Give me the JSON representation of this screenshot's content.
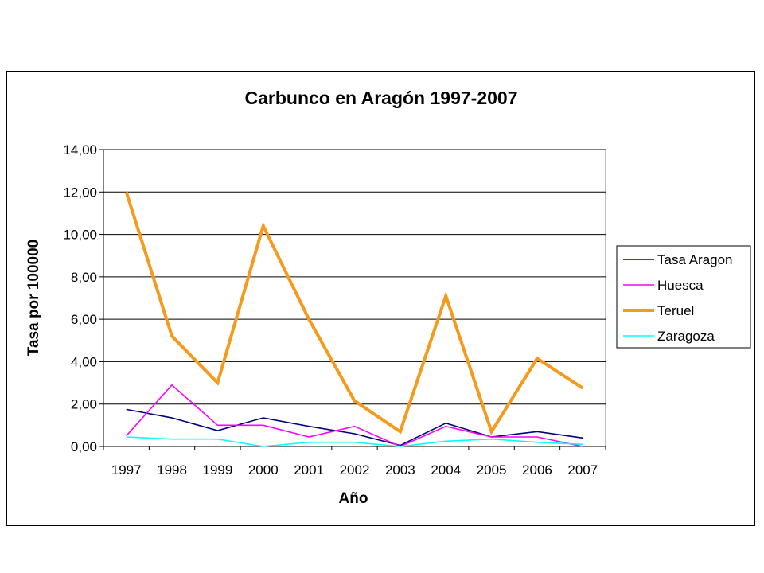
{
  "chart_data": {
    "type": "line",
    "title": "Carbunco en Aragón 1997-2007",
    "xlabel": "Año",
    "ylabel": "Tasa por 100000",
    "categories": [
      "1997",
      "1998",
      "1999",
      "2000",
      "2001",
      "2002",
      "2003",
      "2004",
      "2005",
      "2006",
      "2007"
    ],
    "ylim": [
      0,
      14
    ],
    "yticks": [
      0,
      2,
      4,
      6,
      8,
      10,
      12,
      14
    ],
    "ytick_labels": [
      "0,00",
      "2,00",
      "4,00",
      "6,00",
      "8,00",
      "10,00",
      "12,00",
      "14,00"
    ],
    "grid": true,
    "legend_position": "right",
    "series": [
      {
        "name": "Tasa Aragon",
        "color": "#000080",
        "values": [
          1.75,
          1.35,
          0.75,
          1.35,
          0.95,
          0.6,
          0.05,
          1.1,
          0.45,
          0.7,
          0.4
        ]
      },
      {
        "name": "Huesca",
        "color": "#ff00ff",
        "values": [
          0.5,
          2.9,
          1.0,
          1.0,
          0.45,
          0.95,
          0.0,
          0.95,
          0.45,
          0.45,
          0.0
        ]
      },
      {
        "name": "Teruel",
        "color": "#f59a1c",
        "values": [
          12.0,
          5.2,
          3.0,
          10.4,
          6.0,
          2.15,
          0.7,
          7.1,
          0.7,
          4.15,
          2.75
        ]
      },
      {
        "name": "Zaragoza",
        "color": "#00ffff",
        "values": [
          0.45,
          0.35,
          0.35,
          0.0,
          0.2,
          0.2,
          0.0,
          0.25,
          0.35,
          0.2,
          0.1
        ]
      }
    ]
  }
}
